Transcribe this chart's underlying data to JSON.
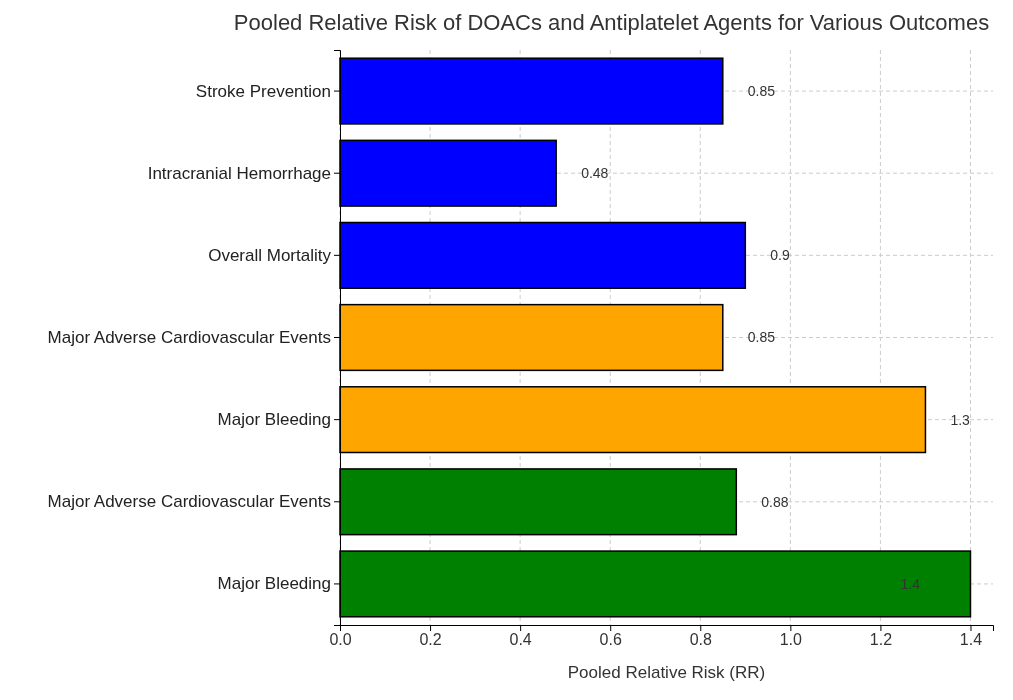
{
  "chart_data": {
    "type": "bar",
    "orientation": "horizontal",
    "title": "Pooled Relative Risk of DOACs and Antiplatelet Agents for Various Outcomes",
    "xlabel": "Pooled Relative Risk (RR)",
    "categories": [
      "Stroke Prevention",
      "Intracranial Hemorrhage",
      "Overall Mortality",
      "Major Adverse Cardiovascular Events",
      "Major Bleeding",
      "Major Adverse Cardiovascular Events",
      "Major Bleeding"
    ],
    "values": [
      0.85,
      0.48,
      0.9,
      0.85,
      1.3,
      0.88,
      1.4
    ],
    "colors": [
      "#0000ff",
      "#0000ff",
      "#0000ff",
      "#ffa500",
      "#ffa500",
      "#008000",
      "#008000"
    ],
    "xlim": [
      0,
      1.45
    ],
    "xticks": [
      {
        "value": 0,
        "label": "0.0"
      },
      0.2,
      0.4,
      0.6,
      0.8,
      {
        "value": 1,
        "label": "1.0"
      },
      1.2,
      1.4
    ],
    "grid": true,
    "data_labels": true
  }
}
